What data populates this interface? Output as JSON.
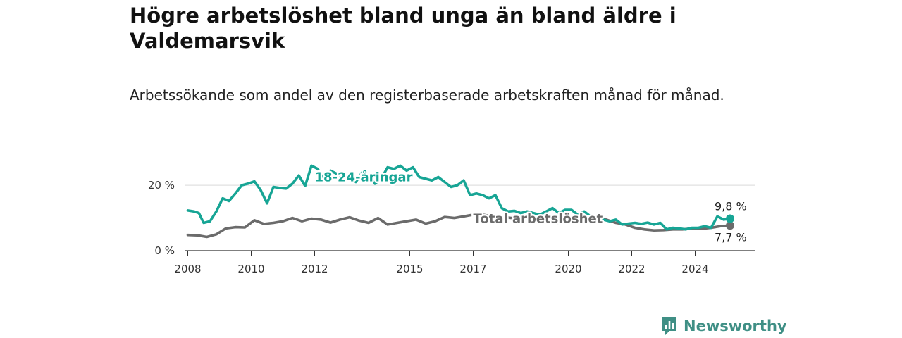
{
  "chart_data": {
    "type": "line",
    "title": "Högre arbetslöshet bland unga än bland äldre i Valdemarsvik",
    "subtitle": "Arbetssökande som andel av den registerbaserade arbetskraften månad för månad.",
    "ylim": [
      0,
      28
    ],
    "yticks": [
      0,
      20
    ],
    "ytick_labels": [
      "0 %",
      "20 %"
    ],
    "xlim": [
      2007.9,
      2025.9
    ],
    "xticks": [
      2008,
      2010,
      2012,
      2015,
      2017,
      2020,
      2022,
      2024
    ],
    "xtick_labels": [
      "2008",
      "2010",
      "2012",
      "2015",
      "2017",
      "2020",
      "2022",
      "2024"
    ],
    "grid": true,
    "series": [
      {
        "name": "18-24-åringar",
        "color": "#17a595",
        "end_label": "9,8 %",
        "x": [
          2008.0,
          2008.2,
          2008.35,
          2008.5,
          2008.7,
          2008.9,
          2009.1,
          2009.3,
          2009.5,
          2009.7,
          2009.9,
          2010.1,
          2010.3,
          2010.5,
          2010.7,
          2010.9,
          2011.1,
          2011.3,
          2011.5,
          2011.7,
          2011.9,
          2012.1,
          2012.3,
          2012.5,
          2012.7,
          2012.9,
          2013.1,
          2013.3,
          2013.5,
          2013.7,
          2013.9,
          2014.1,
          2014.3,
          2014.5,
          2014.7,
          2014.9,
          2015.1,
          2015.3,
          2015.5,
          2015.7,
          2015.9,
          2016.1,
          2016.3,
          2016.5,
          2016.7,
          2016.9,
          2017.1,
          2017.3,
          2017.5,
          2017.7,
          2017.9,
          2018.1,
          2018.3,
          2018.5,
          2018.7,
          2018.9,
          2019.1,
          2019.3,
          2019.5,
          2019.7,
          2019.9,
          2020.1,
          2020.3,
          2020.5,
          2020.7,
          2020.9,
          2021.1,
          2021.3,
          2021.5,
          2021.7,
          2021.9,
          2022.1,
          2022.3,
          2022.5,
          2022.7,
          2022.9,
          2023.1,
          2023.3,
          2023.5,
          2023.7,
          2023.9,
          2024.1,
          2024.3,
          2024.5,
          2024.7,
          2024.9,
          2025.1
        ],
        "y": [
          12.3,
          12.0,
          11.5,
          8.5,
          9.0,
          12.0,
          16.0,
          15.2,
          17.5,
          20.0,
          20.5,
          21.2,
          18.5,
          14.5,
          19.5,
          19.2,
          19.0,
          20.5,
          23.0,
          19.8,
          26.0,
          25.0,
          21.5,
          24.5,
          23.5,
          22.5,
          23.0,
          21.0,
          24.0,
          23.0,
          20.5,
          22.0,
          25.5,
          25.0,
          26.0,
          24.5,
          25.5,
          22.5,
          22.0,
          21.5,
          22.5,
          21.0,
          19.5,
          20.0,
          21.5,
          17.0,
          17.5,
          17.0,
          16.0,
          17.0,
          13.0,
          12.0,
          12.2,
          11.5,
          12.0,
          11.5,
          11.0,
          12.0,
          13.0,
          11.5,
          12.5,
          12.5,
          11.0,
          12.0,
          10.5,
          10.0,
          9.5,
          9.0,
          9.5,
          8.0,
          8.3,
          8.5,
          8.2,
          8.6,
          8.0,
          8.5,
          6.5,
          7.0,
          6.8,
          6.5,
          7.0,
          7.0,
          7.5,
          7.0,
          10.5,
          9.5,
          9.8
        ]
      },
      {
        "name": "Total arbetslöshet",
        "color": "#6b6b6b",
        "end_label": "7,7 %",
        "x": [
          2008.0,
          2008.3,
          2008.6,
          2008.9,
          2009.2,
          2009.5,
          2009.8,
          2010.1,
          2010.4,
          2010.7,
          2011.0,
          2011.3,
          2011.6,
          2011.9,
          2012.2,
          2012.5,
          2012.8,
          2013.1,
          2013.4,
          2013.7,
          2014.0,
          2014.3,
          2014.6,
          2014.9,
          2015.2,
          2015.5,
          2015.8,
          2016.1,
          2016.4,
          2016.7,
          2017.0,
          2017.3,
          2017.6,
          2017.9,
          2018.2,
          2018.5,
          2018.8,
          2019.1,
          2019.4,
          2019.7,
          2020.0,
          2020.3,
          2020.6,
          2020.9,
          2021.2,
          2021.5,
          2021.8,
          2022.1,
          2022.4,
          2022.7,
          2023.0,
          2023.3,
          2023.6,
          2023.9,
          2024.2,
          2024.5,
          2024.8,
          2025.1
        ],
        "y": [
          4.8,
          4.7,
          4.2,
          5.0,
          6.8,
          7.2,
          7.1,
          9.3,
          8.2,
          8.5,
          9.0,
          10.0,
          9.0,
          9.8,
          9.5,
          8.6,
          9.5,
          10.2,
          9.2,
          8.5,
          10.0,
          8.0,
          8.5,
          9.0,
          9.5,
          8.3,
          9.0,
          10.3,
          10.0,
          10.5,
          11.0,
          11.0,
          10.5,
          10.5,
          10.0,
          10.0,
          9.5,
          10.0,
          9.0,
          8.5,
          9.0,
          9.0,
          10.0,
          10.5,
          9.5,
          8.5,
          8.0,
          7.0,
          6.5,
          6.2,
          6.3,
          6.5,
          6.5,
          6.8,
          6.7,
          7.0,
          7.5,
          7.7
        ]
      }
    ]
  },
  "brand": {
    "name": "Newsworthy",
    "color": "#3f8f85",
    "icon": "bar-chart-logo-icon"
  }
}
